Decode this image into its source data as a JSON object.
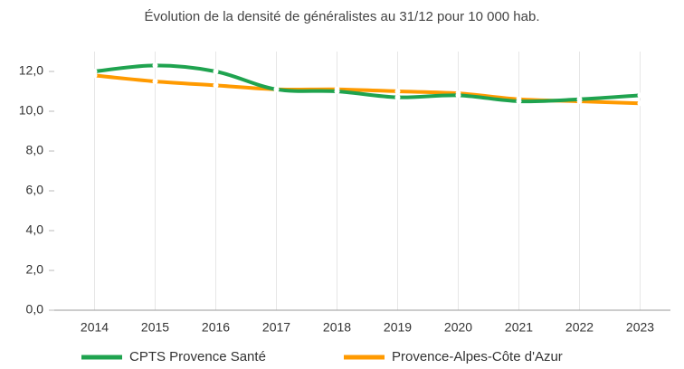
{
  "chart_data": {
    "type": "line",
    "title": "Évolution de la densité de généralistes au 31/12 pour 10 000 hab.",
    "categories": [
      "2014",
      "2015",
      "2016",
      "2017",
      "2018",
      "2019",
      "2020",
      "2021",
      "2022",
      "2023"
    ],
    "series": [
      {
        "name": "CPTS Provence Santé",
        "color": "#1fa34f",
        "values": [
          12.0,
          12.3,
          12.0,
          11.1,
          11.0,
          10.7,
          10.8,
          10.5,
          10.6,
          10.8
        ]
      },
      {
        "name": "Provence-Alpes-Côte d'Azur",
        "color": "#ff9a00",
        "values": [
          11.8,
          11.5,
          11.3,
          11.1,
          11.1,
          11.0,
          10.9,
          10.6,
          10.5,
          10.4
        ]
      }
    ],
    "ylim": [
      0,
      13
    ],
    "yticks": [
      {
        "value": 0,
        "label": "0,0"
      },
      {
        "value": 2,
        "label": "2,0"
      },
      {
        "value": 4,
        "label": "4,0"
      },
      {
        "value": 6,
        "label": "6,0"
      },
      {
        "value": 8,
        "label": "8,0"
      },
      {
        "value": 10,
        "label": "10,0"
      },
      {
        "value": 12,
        "label": "12,0"
      }
    ],
    "legend": "bottom"
  }
}
